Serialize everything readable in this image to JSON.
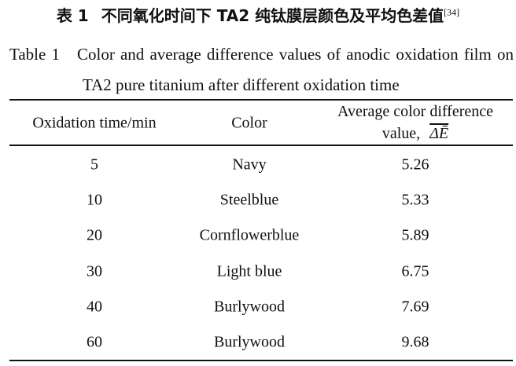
{
  "caption_cn": {
    "label": "表 1",
    "title": "不同氧化时间下 TA2 纯钛膜层颜色及平均色差值",
    "ref": "[34]"
  },
  "caption_en": {
    "label": "Table 1",
    "title": "Color and average difference values of anodic oxidation film on TA2 pure titanium after different oxidation time"
  },
  "table": {
    "header": [
      "Oxidation time/min",
      "Color",
      "Average color difference value,"
    ],
    "header_symbol": "ΔĒ",
    "rows": [
      [
        5,
        "Navy",
        5.26
      ],
      [
        10,
        "Steelblue",
        5.33
      ],
      [
        20,
        "Cornflowerblue",
        5.89
      ],
      [
        30,
        "Light blue",
        6.75
      ],
      [
        40,
        "Burlywood",
        7.69
      ],
      [
        60,
        "Burlywood",
        9.68
      ]
    ]
  }
}
